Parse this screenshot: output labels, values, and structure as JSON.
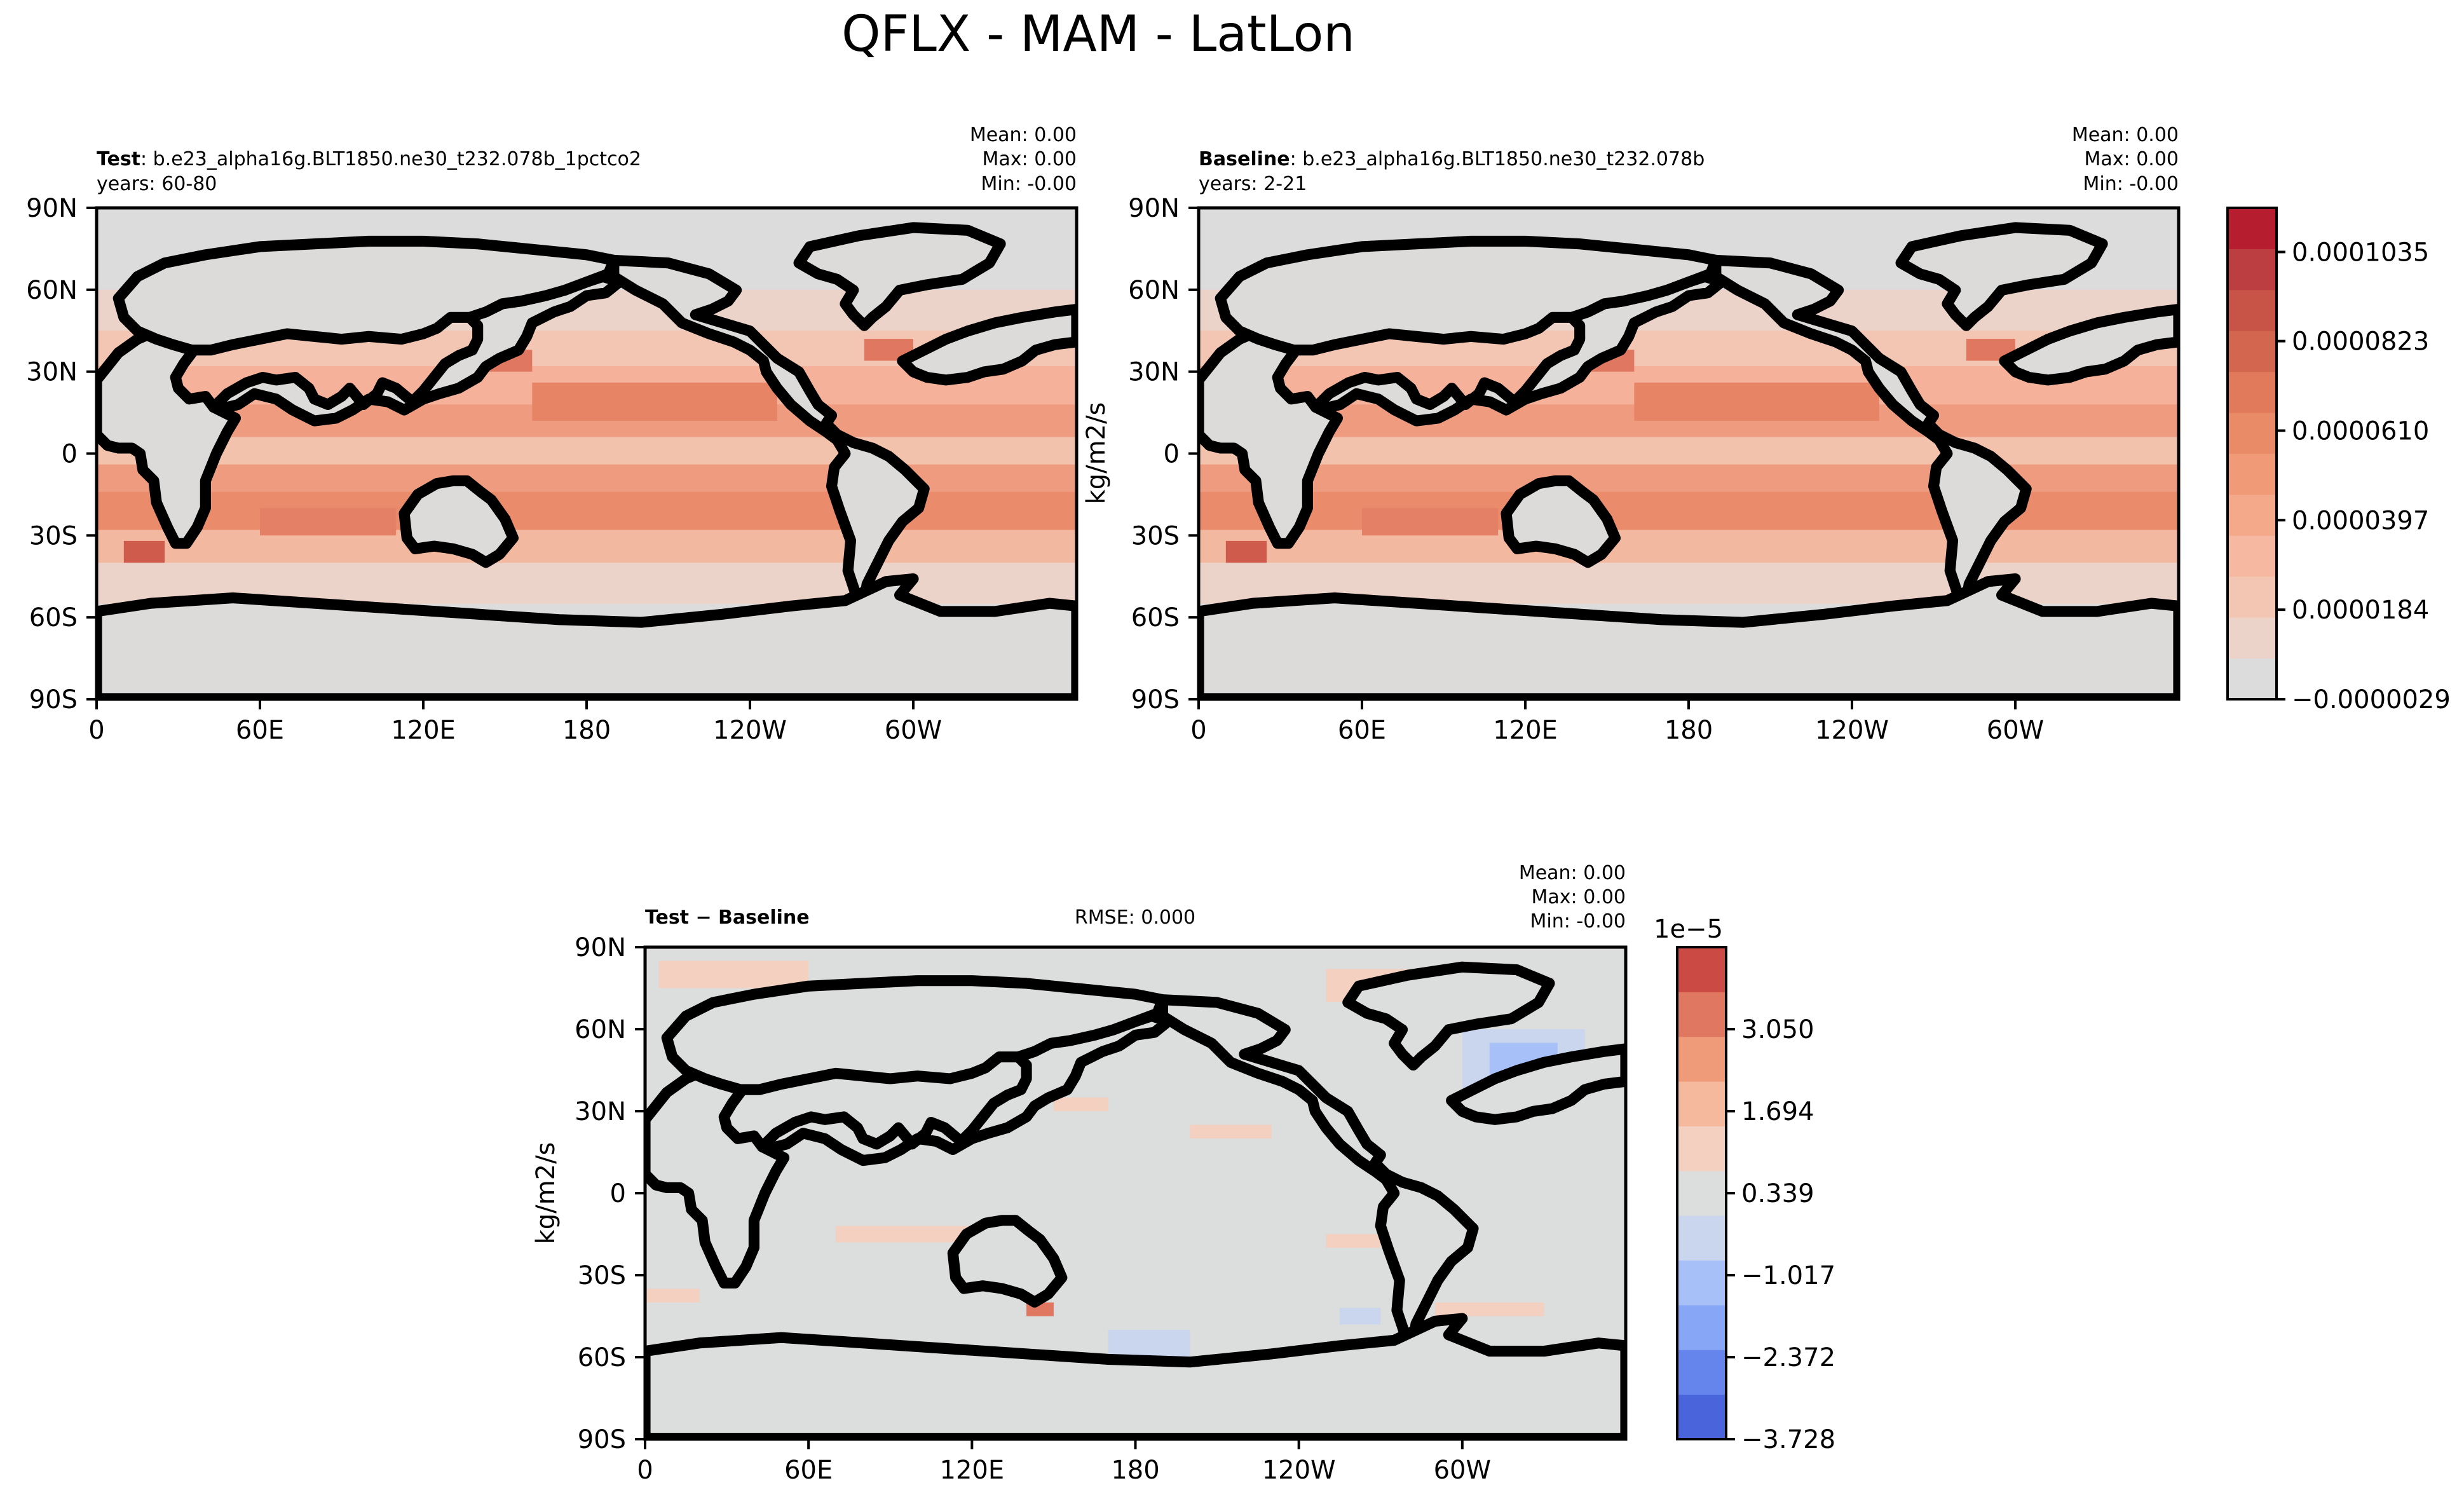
{
  "figure": {
    "suptitle": "QFLX - MAM - LatLon"
  },
  "chart_data": [
    {
      "type": "heatmap",
      "panel": "test",
      "label_bold": "Test",
      "label_rest": ": b.e23_alpha16g.BLT1850.ne30_t232.078b_1pctco2",
      "years": "years: 60-80",
      "stats": {
        "mean": "Mean:  0.00",
        "max": "Max:  0.00",
        "min": "Min: -0.00"
      },
      "ylabel": "",
      "x_ticks": [
        "0",
        "60E",
        "120E",
        "180",
        "120W",
        "60W"
      ],
      "y_ticks": [
        "90N",
        "60N",
        "30N",
        "0",
        "30S",
        "60S",
        "90S"
      ],
      "xlim": [
        0,
        360
      ],
      "ylim": [
        -90,
        90
      ],
      "colormap": "coolwarm",
      "field": "field_test"
    },
    {
      "type": "heatmap",
      "panel": "baseline",
      "label_bold": "Baseline",
      "label_rest": ": b.e23_alpha16g.BLT1850.ne30_t232.078b",
      "years": "years: 2-21",
      "stats": {
        "mean": "Mean:  0.00",
        "max": "Max:  0.00",
        "min": "Min: -0.00"
      },
      "ylabel": "kg/m2/s",
      "x_ticks": [
        "0",
        "60E",
        "120E",
        "180",
        "120W",
        "60W"
      ],
      "y_ticks": [
        "90N",
        "60N",
        "30N",
        "0",
        "30S",
        "60S",
        "90S"
      ],
      "xlim": [
        0,
        360
      ],
      "ylim": [
        -90,
        90
      ],
      "colormap": "coolwarm",
      "field": "field_base",
      "colorbar": {
        "tick_labels": [
          "0.0001035",
          "0.0000823",
          "0.0000610",
          "0.0000397",
          "0.0000184",
          "−0.0000029"
        ],
        "tick_values": [
          0.0001035,
          8.23e-05,
          6.1e-05,
          3.97e-05,
          1.84e-05,
          -2.9e-06
        ],
        "levels": 13,
        "colors": [
          "#dddcdc",
          "#ecd3c9",
          "#f3c6b4",
          "#f6b8a0",
          "#f5a98b",
          "#f19a78",
          "#ea8b68",
          "#e07a5a",
          "#d3664f",
          "#c85447",
          "#bc3e40",
          "#b61e2f"
        ]
      }
    },
    {
      "type": "heatmap",
      "panel": "difference",
      "label_bold": "Test − Baseline",
      "rmse": "RMSE: 0.000",
      "stats": {
        "mean": "Mean:  0.00",
        "max": "Max:  0.00",
        "min": "Min: -0.00"
      },
      "ylabel": "kg/m2/s",
      "x_ticks": [
        "0",
        "60E",
        "120E",
        "180",
        "120W",
        "60W"
      ],
      "y_ticks": [
        "90N",
        "60N",
        "30N",
        "0",
        "30S",
        "60S",
        "90S"
      ],
      "xlim": [
        0,
        360
      ],
      "ylim": [
        -90,
        90
      ],
      "colormap": "coolwarm",
      "field": "field_diff",
      "colorbar": {
        "offset_text": "1e−5",
        "tick_labels": [
          "3.050",
          "1.694",
          "0.339",
          "−1.017",
          "−2.372",
          "−3.728"
        ],
        "tick_values": [
          3.05,
          1.694,
          0.339,
          -1.017,
          -2.372,
          -3.728
        ],
        "colors": [
          "#4a64dc",
          "#6685ec",
          "#87a6f6",
          "#a8c0f8",
          "#c9d6ee",
          "#dcdddd",
          "#f3d0c0",
          "#f5b99e",
          "#ef9a78",
          "#e07760",
          "#cb4a43"
        ]
      }
    }
  ]
}
